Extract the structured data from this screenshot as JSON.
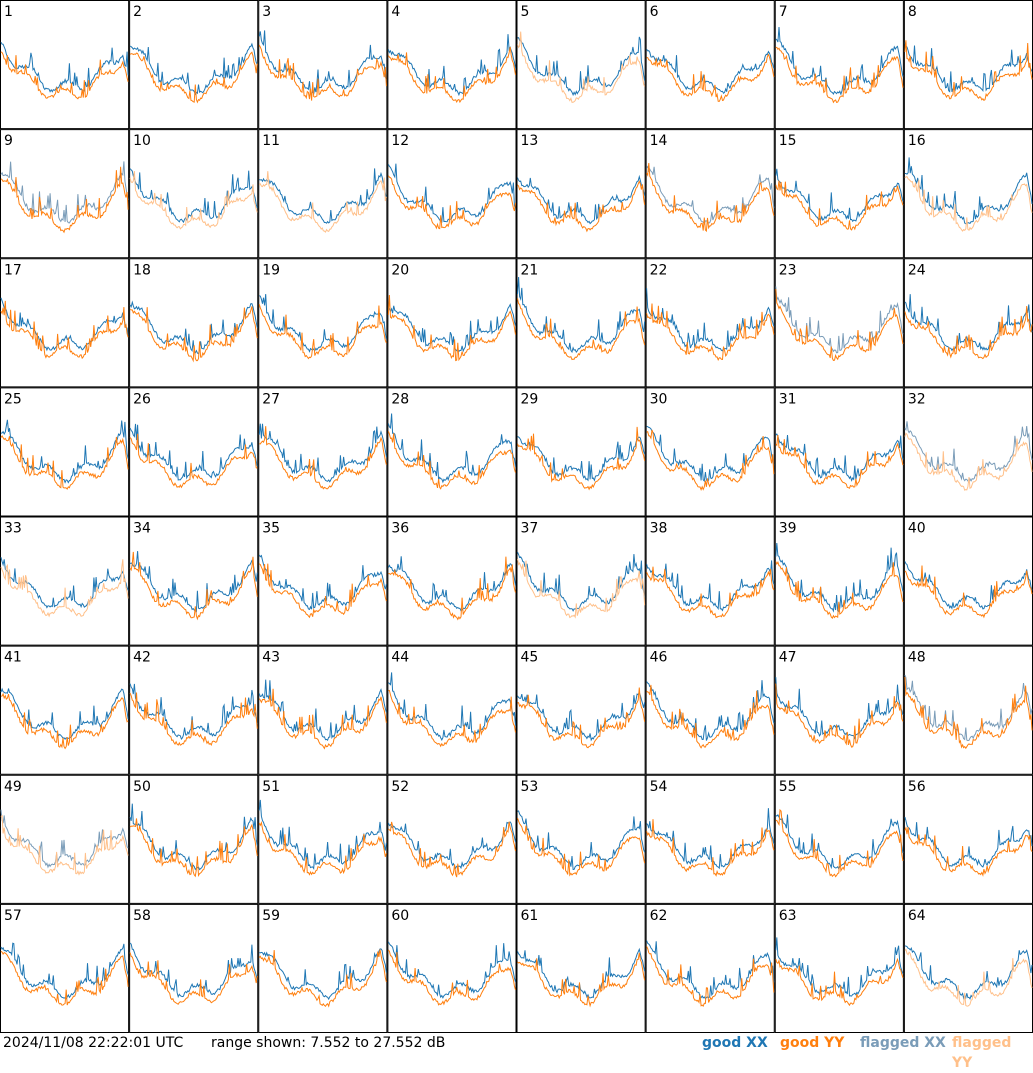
{
  "chart_data": {
    "type": "line",
    "grid": {
      "rows": 8,
      "cols": 8
    },
    "panels": [
      {
        "label": "1",
        "xx": "good",
        "yy": "good"
      },
      {
        "label": "2",
        "xx": "good",
        "yy": "good"
      },
      {
        "label": "3",
        "xx": "good",
        "yy": "good"
      },
      {
        "label": "4",
        "xx": "good",
        "yy": "good"
      },
      {
        "label": "5",
        "xx": "good",
        "yy": "flagged"
      },
      {
        "label": "6",
        "xx": "good",
        "yy": "good"
      },
      {
        "label": "7",
        "xx": "good",
        "yy": "good"
      },
      {
        "label": "8",
        "xx": "good",
        "yy": "good"
      },
      {
        "label": "9",
        "xx": "flagged",
        "yy": "good"
      },
      {
        "label": "10",
        "xx": "good",
        "yy": "flagged"
      },
      {
        "label": "11",
        "xx": "good",
        "yy": "flagged"
      },
      {
        "label": "12",
        "xx": "good",
        "yy": "good"
      },
      {
        "label": "13",
        "xx": "good",
        "yy": "good"
      },
      {
        "label": "14",
        "xx": "flagged",
        "yy": "good"
      },
      {
        "label": "15",
        "xx": "good",
        "yy": "good"
      },
      {
        "label": "16",
        "xx": "good",
        "yy": "flagged"
      },
      {
        "label": "17",
        "xx": "good",
        "yy": "good"
      },
      {
        "label": "18",
        "xx": "good",
        "yy": "good"
      },
      {
        "label": "19",
        "xx": "good",
        "yy": "good"
      },
      {
        "label": "20",
        "xx": "good",
        "yy": "good"
      },
      {
        "label": "21",
        "xx": "good",
        "yy": "good"
      },
      {
        "label": "22",
        "xx": "good",
        "yy": "good"
      },
      {
        "label": "23",
        "xx": "flagged",
        "yy": "good"
      },
      {
        "label": "24",
        "xx": "good",
        "yy": "good"
      },
      {
        "label": "25",
        "xx": "good",
        "yy": "good"
      },
      {
        "label": "26",
        "xx": "good",
        "yy": "good"
      },
      {
        "label": "27",
        "xx": "good",
        "yy": "good"
      },
      {
        "label": "28",
        "xx": "good",
        "yy": "good"
      },
      {
        "label": "29",
        "xx": "good",
        "yy": "good"
      },
      {
        "label": "30",
        "xx": "good",
        "yy": "good"
      },
      {
        "label": "31",
        "xx": "good",
        "yy": "good"
      },
      {
        "label": "32",
        "xx": "flagged",
        "yy": "flagged"
      },
      {
        "label": "33",
        "xx": "good",
        "yy": "flagged"
      },
      {
        "label": "34",
        "xx": "good",
        "yy": "good"
      },
      {
        "label": "35",
        "xx": "good",
        "yy": "good"
      },
      {
        "label": "36",
        "xx": "good",
        "yy": "good"
      },
      {
        "label": "37",
        "xx": "good",
        "yy": "flagged"
      },
      {
        "label": "38",
        "xx": "good",
        "yy": "good"
      },
      {
        "label": "39",
        "xx": "good",
        "yy": "good"
      },
      {
        "label": "40",
        "xx": "good",
        "yy": "good"
      },
      {
        "label": "41",
        "xx": "good",
        "yy": "good"
      },
      {
        "label": "42",
        "xx": "good",
        "yy": "good"
      },
      {
        "label": "43",
        "xx": "good",
        "yy": "good"
      },
      {
        "label": "44",
        "xx": "good",
        "yy": "good"
      },
      {
        "label": "45",
        "xx": "good",
        "yy": "good"
      },
      {
        "label": "46",
        "xx": "good",
        "yy": "good"
      },
      {
        "label": "47",
        "xx": "good",
        "yy": "good"
      },
      {
        "label": "48",
        "xx": "flagged",
        "yy": "good"
      },
      {
        "label": "49",
        "xx": "flagged",
        "yy": "flagged"
      },
      {
        "label": "50",
        "xx": "good",
        "yy": "good"
      },
      {
        "label": "51",
        "xx": "good",
        "yy": "good"
      },
      {
        "label": "52",
        "xx": "good",
        "yy": "good"
      },
      {
        "label": "53",
        "xx": "good",
        "yy": "good"
      },
      {
        "label": "54",
        "xx": "good",
        "yy": "good"
      },
      {
        "label": "55",
        "xx": "good",
        "yy": "good"
      },
      {
        "label": "56",
        "xx": "good",
        "yy": "good"
      },
      {
        "label": "57",
        "xx": "good",
        "yy": "good"
      },
      {
        "label": "58",
        "xx": "good",
        "yy": "good"
      },
      {
        "label": "59",
        "xx": "good",
        "yy": "good"
      },
      {
        "label": "60",
        "xx": "good",
        "yy": "good"
      },
      {
        "label": "61",
        "xx": "good",
        "yy": "good"
      },
      {
        "label": "62",
        "xx": "good",
        "yy": "good"
      },
      {
        "label": "63",
        "xx": "good",
        "yy": "good"
      },
      {
        "label": "64",
        "xx": "good",
        "yy": "flagged"
      }
    ],
    "ylim": [
      7.552,
      27.552
    ],
    "y_unit": "dB",
    "legend": [
      {
        "name": "good XX",
        "color": "#1f77b4"
      },
      {
        "name": "good YY",
        "color": "#ff7f0e"
      },
      {
        "name": "flagged XX",
        "color": "#7a9cb8"
      },
      {
        "name": "flagged YY",
        "color": "#ffc08a"
      }
    ]
  },
  "footer": {
    "timestamp": "2024/11/08 22:22:01 UTC",
    "range_text": "range shown: 7.552 to 27.552 dB",
    "legend_good_xx": "good XX",
    "legend_good_yy": "good YY",
    "legend_flagged_xx": "flagged XX",
    "legend_flagged_yy": "flagged YY"
  },
  "colors": {
    "good_xx": "#1f77b4",
    "good_yy": "#ff7f0e",
    "flagged_xx": "#7a9cb8",
    "flagged_yy": "#ffc08a"
  }
}
